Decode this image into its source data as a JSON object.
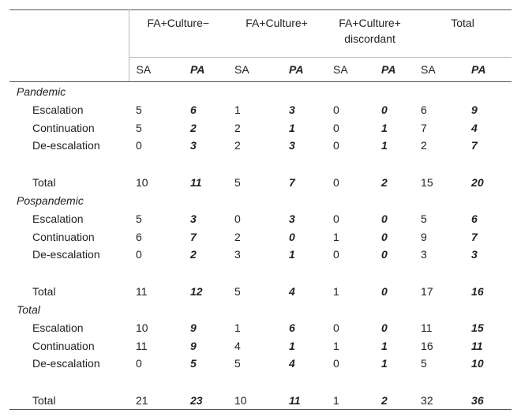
{
  "header": {
    "groups": [
      "FA+Culture−",
      "FA+Culture+",
      "FA+Culture+ discordant",
      "Total"
    ],
    "sub": [
      "SA",
      "PA",
      "SA",
      "PA",
      "SA",
      "PA",
      "SA",
      "PA"
    ]
  },
  "sections": [
    {
      "title": "Pandemic",
      "rows": [
        {
          "label": "Escalation",
          "values": [
            "5",
            "6",
            "1",
            "3",
            "0",
            "0",
            "6",
            "9"
          ]
        },
        {
          "label": "Continuation",
          "values": [
            "5",
            "2",
            "2",
            "1",
            "0",
            "1",
            "7",
            "4"
          ]
        },
        {
          "label": "De-escalation",
          "values": [
            "0",
            "3",
            "2",
            "3",
            "0",
            "1",
            "2",
            "7"
          ]
        },
        {
          "label": "Total",
          "values": [
            "10",
            "11",
            "5",
            "7",
            "0",
            "2",
            "15",
            "20"
          ]
        }
      ]
    },
    {
      "title": "Pospandemic",
      "rows": [
        {
          "label": "Escalation",
          "values": [
            "5",
            "3",
            "0",
            "3",
            "0",
            "0",
            "5",
            "6"
          ]
        },
        {
          "label": "Continuation",
          "values": [
            "6",
            "7",
            "2",
            "0",
            "1",
            "0",
            "9",
            "7"
          ]
        },
        {
          "label": "De-escalation",
          "values": [
            "0",
            "2",
            "3",
            "1",
            "0",
            "0",
            "3",
            "3"
          ]
        },
        {
          "label": "Total",
          "values": [
            "11",
            "12",
            "5",
            "4",
            "1",
            "0",
            "17",
            "16"
          ]
        }
      ]
    },
    {
      "title": "Total",
      "rows": [
        {
          "label": "Escalation",
          "values": [
            "10",
            "9",
            "1",
            "6",
            "0",
            "0",
            "11",
            "15"
          ]
        },
        {
          "label": "Continuation",
          "values": [
            "11",
            "9",
            "4",
            "1",
            "1",
            "1",
            "16",
            "11"
          ]
        },
        {
          "label": "De-escalation",
          "values": [
            "0",
            "5",
            "5",
            "4",
            "0",
            "1",
            "5",
            "10"
          ]
        },
        {
          "label": "Total",
          "values": [
            "21",
            "23",
            "10",
            "11",
            "1",
            "2",
            "32",
            "36"
          ]
        }
      ]
    }
  ]
}
